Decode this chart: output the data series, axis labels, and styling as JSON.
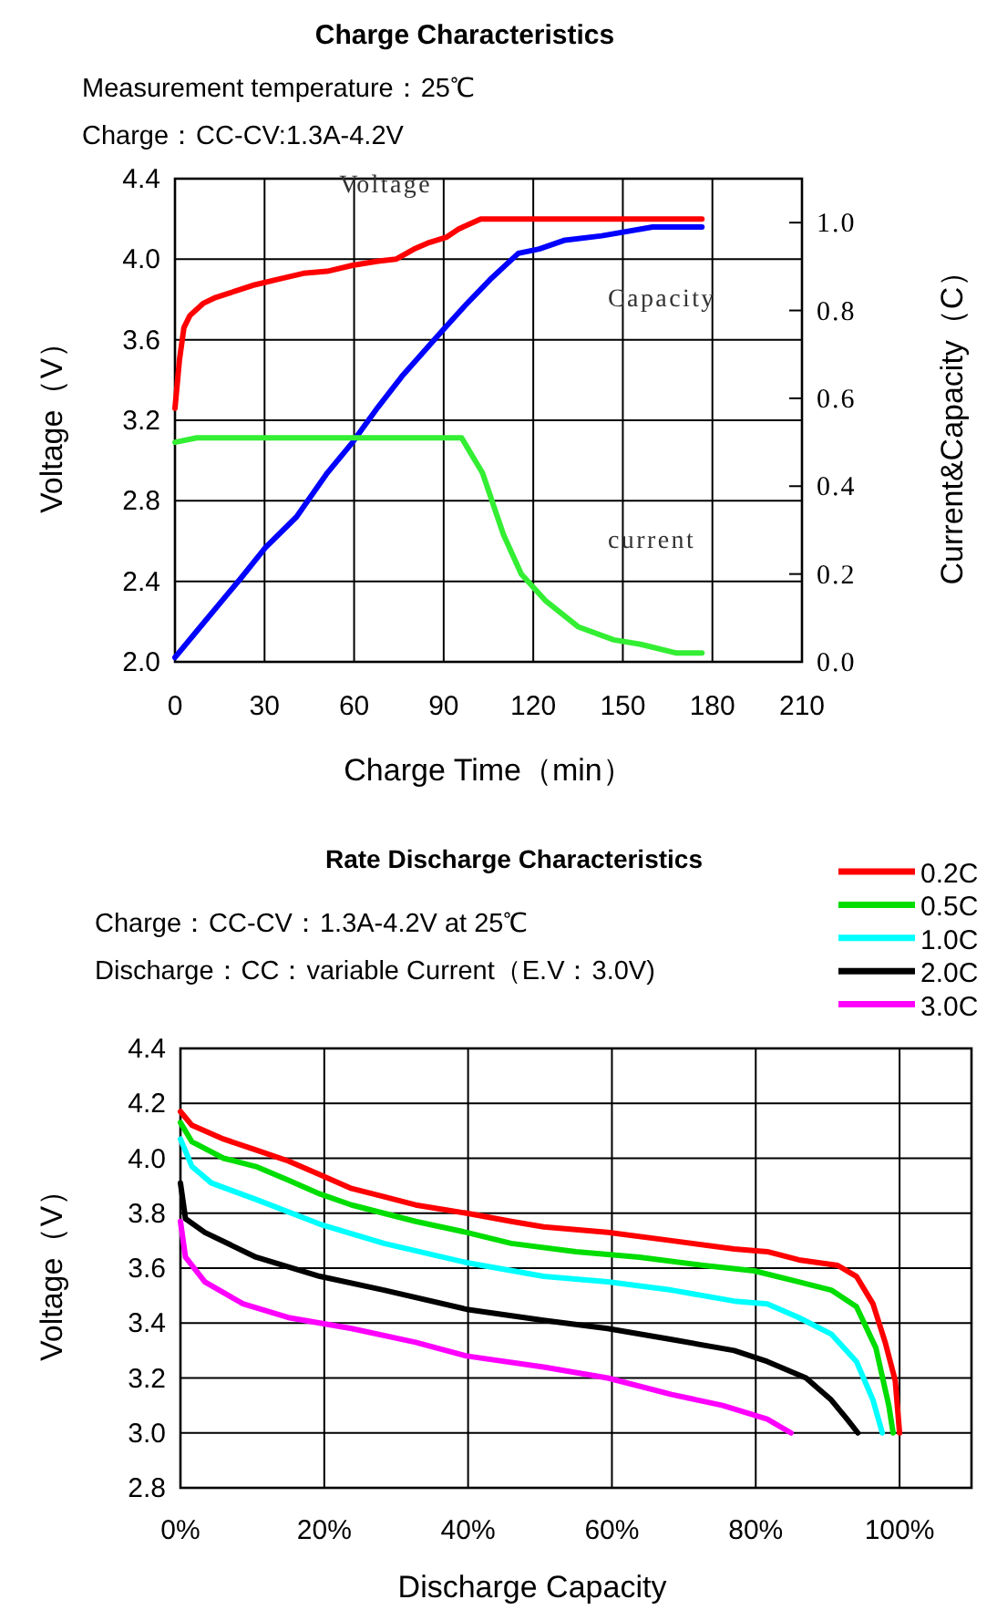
{
  "chart_data": [
    {
      "type": "line",
      "title": "Charge Characteristics",
      "subtitle": "Measurement temperature：25℃",
      "annotations": [
        "Charge：CC-CV:1.3A-4.2V"
      ],
      "xlabel": "Charge Time（min）",
      "ylabel": "Voltage（V）",
      "y2label": "Current&Capacity（C）",
      "grid": true,
      "xlim": [
        0,
        210
      ],
      "xticks": [
        0,
        30,
        60,
        90,
        120,
        150,
        180,
        210
      ],
      "ylim": [
        2.0,
        4.4
      ],
      "yticks": [
        {
          "value": 2.0,
          "label": "2.0"
        },
        {
          "value": 2.4,
          "label": "2.4"
        },
        {
          "value": 2.8,
          "label": "2.8"
        },
        {
          "value": 3.2,
          "label": "3.2"
        },
        {
          "value": 3.6,
          "label": "3.6"
        },
        {
          "value": 4.0,
          "label": "4.0"
        },
        {
          "value": 4.4,
          "label": "4.4"
        }
      ],
      "y2lim": [
        0,
        1.1
      ],
      "y2ticks": [
        {
          "value": 0,
          "label": "0.0"
        },
        {
          "value": 0.2,
          "label": "0.2"
        },
        {
          "value": 0.4,
          "label": "0.4"
        },
        {
          "value": 0.6,
          "label": "0.6"
        },
        {
          "value": 0.8,
          "label": "0.8"
        },
        {
          "value": 1.0,
          "label": "1.0"
        }
      ],
      "series": [
        {
          "name": "Voltage",
          "color": "#ff0000",
          "x": [
            0,
            1.5,
            3,
            5,
            9.4,
            13.6,
            15.7,
            22,
            26,
            34.5,
            43,
            51,
            59.5,
            68,
            74,
            80,
            84.6,
            91,
            95,
            102.4,
            176.5
          ],
          "values": [
            3.26,
            3.5,
            3.66,
            3.72,
            3.78,
            3.81,
            3.82,
            3.85,
            3.87,
            3.9,
            3.93,
            3.94,
            3.97,
            3.99,
            4.0,
            4.05,
            4.08,
            4.11,
            4.15,
            4.2,
            4.2
          ]
        },
        {
          "name": "Capacity",
          "color": "#0000ff",
          "axis": "y2",
          "x": [
            0,
            7.3,
            22,
            30.3,
            40.7,
            51,
            59.5,
            68,
            76,
            89,
            97,
            105.5,
            115,
            122,
            130.6,
            143,
            160,
            176.5
          ],
          "values": [
            0.01,
            0.07,
            0.19,
            0.26,
            0.33,
            0.43,
            0.5,
            0.58,
            0.65,
            0.75,
            0.81,
            0.87,
            0.93,
            0.94,
            0.96,
            0.97,
            0.99,
            0.99
          ]
        },
        {
          "name": "current",
          "color": "#33ee33",
          "axis": "y2",
          "x": [
            0,
            7.3,
            96,
            103,
            110,
            116,
            124,
            135,
            147,
            156,
            168,
            176.5
          ],
          "values": [
            0.5,
            0.51,
            0.51,
            0.43,
            0.29,
            0.2,
            0.14,
            0.08,
            0.05,
            0.04,
            0.02,
            0.02
          ]
        }
      ]
    },
    {
      "type": "line",
      "title": "Rate Discharge Characteristics",
      "subtitle": "Charge：CC-CV：1.3A-4.2V at 25℃",
      "annotations": [
        "Discharge：CC：variable Current（E.V：3.0V)"
      ],
      "xlabel": "Discharge Capacity",
      "ylabel": "Voltage（V）",
      "grid": true,
      "legend": "top right",
      "xlim": [
        0,
        110
      ],
      "xticks": [
        {
          "value": 0,
          "label": "0%"
        },
        {
          "value": 20,
          "label": "20%"
        },
        {
          "value": 40,
          "label": "40%"
        },
        {
          "value": 60,
          "label": "60%"
        },
        {
          "value": 80,
          "label": "80%"
        },
        {
          "value": 100,
          "label": "100%"
        }
      ],
      "ylim": [
        2.8,
        4.4
      ],
      "yticks": [
        {
          "value": 2.8,
          "label": "2.8"
        },
        {
          "value": 3.0,
          "label": "3.0"
        },
        {
          "value": 3.2,
          "label": "3.2"
        },
        {
          "value": 3.4,
          "label": "3.4"
        },
        {
          "value": 3.6,
          "label": "3.6"
        },
        {
          "value": 3.8,
          "label": "3.8"
        },
        {
          "value": 4.0,
          "label": "4.0"
        },
        {
          "value": 4.2,
          "label": "4.2"
        },
        {
          "value": 4.4,
          "label": "4.4"
        }
      ],
      "series": [
        {
          "name": "0.2C",
          "color": "#ff0000",
          "x": [
            0,
            1.6,
            6,
            10.5,
            15,
            19.4,
            23.8,
            28.3,
            32.7,
            39.8,
            46,
            50.5,
            59.4,
            68.3,
            77,
            81.6,
            86,
            91.4,
            94,
            96.3,
            98,
            99.4,
            100
          ],
          "values": [
            4.17,
            4.12,
            4.07,
            4.03,
            3.99,
            3.94,
            3.89,
            3.86,
            3.83,
            3.8,
            3.77,
            3.75,
            3.73,
            3.7,
            3.67,
            3.66,
            3.63,
            3.61,
            3.57,
            3.47,
            3.33,
            3.19,
            3.0
          ]
        },
        {
          "name": "0.5C",
          "color": "#00dd00",
          "x": [
            0,
            1.6,
            6,
            10.5,
            15,
            19.4,
            23.8,
            32.7,
            39.8,
            46,
            55,
            63.8,
            72.7,
            79.8,
            86,
            90.5,
            94,
            96.7,
            98.5,
            99.1
          ],
          "values": [
            4.13,
            4.06,
            4.0,
            3.97,
            3.92,
            3.87,
            3.83,
            3.77,
            3.73,
            3.69,
            3.66,
            3.64,
            3.61,
            3.59,
            3.55,
            3.52,
            3.46,
            3.31,
            3.1,
            3.0
          ]
        },
        {
          "name": "1.0C",
          "color": "#00ffff",
          "x": [
            0,
            1.6,
            4.3,
            10.5,
            19.4,
            28.3,
            39.8,
            50.5,
            59.4,
            68.3,
            77,
            81.6,
            86,
            90.5,
            94,
            96.3,
            97.6
          ],
          "values": [
            4.07,
            3.97,
            3.91,
            3.85,
            3.76,
            3.69,
            3.62,
            3.57,
            3.55,
            3.52,
            3.48,
            3.47,
            3.42,
            3.36,
            3.26,
            3.12,
            3.0
          ]
        },
        {
          "name": "2.0C",
          "color": "#000000",
          "x": [
            0,
            0.7,
            3.4,
            10.5,
            19.4,
            28.3,
            39.8,
            50.5,
            59.4,
            68.3,
            77,
            81.6,
            87,
            90.5,
            92.7,
            94.2
          ],
          "values": [
            3.91,
            3.78,
            3.73,
            3.64,
            3.57,
            3.52,
            3.45,
            3.41,
            3.38,
            3.34,
            3.3,
            3.26,
            3.2,
            3.12,
            3.05,
            3.0
          ]
        },
        {
          "name": "3.0C",
          "color": "#ff00ff",
          "x": [
            0,
            0.7,
            3.4,
            8.7,
            15,
            23.8,
            32.7,
            39.8,
            50.5,
            59.4,
            68.3,
            75.4,
            81.6,
            84.9
          ],
          "values": [
            3.77,
            3.64,
            3.55,
            3.47,
            3.42,
            3.38,
            3.33,
            3.28,
            3.24,
            3.2,
            3.14,
            3.1,
            3.05,
            3.0
          ]
        }
      ]
    }
  ]
}
